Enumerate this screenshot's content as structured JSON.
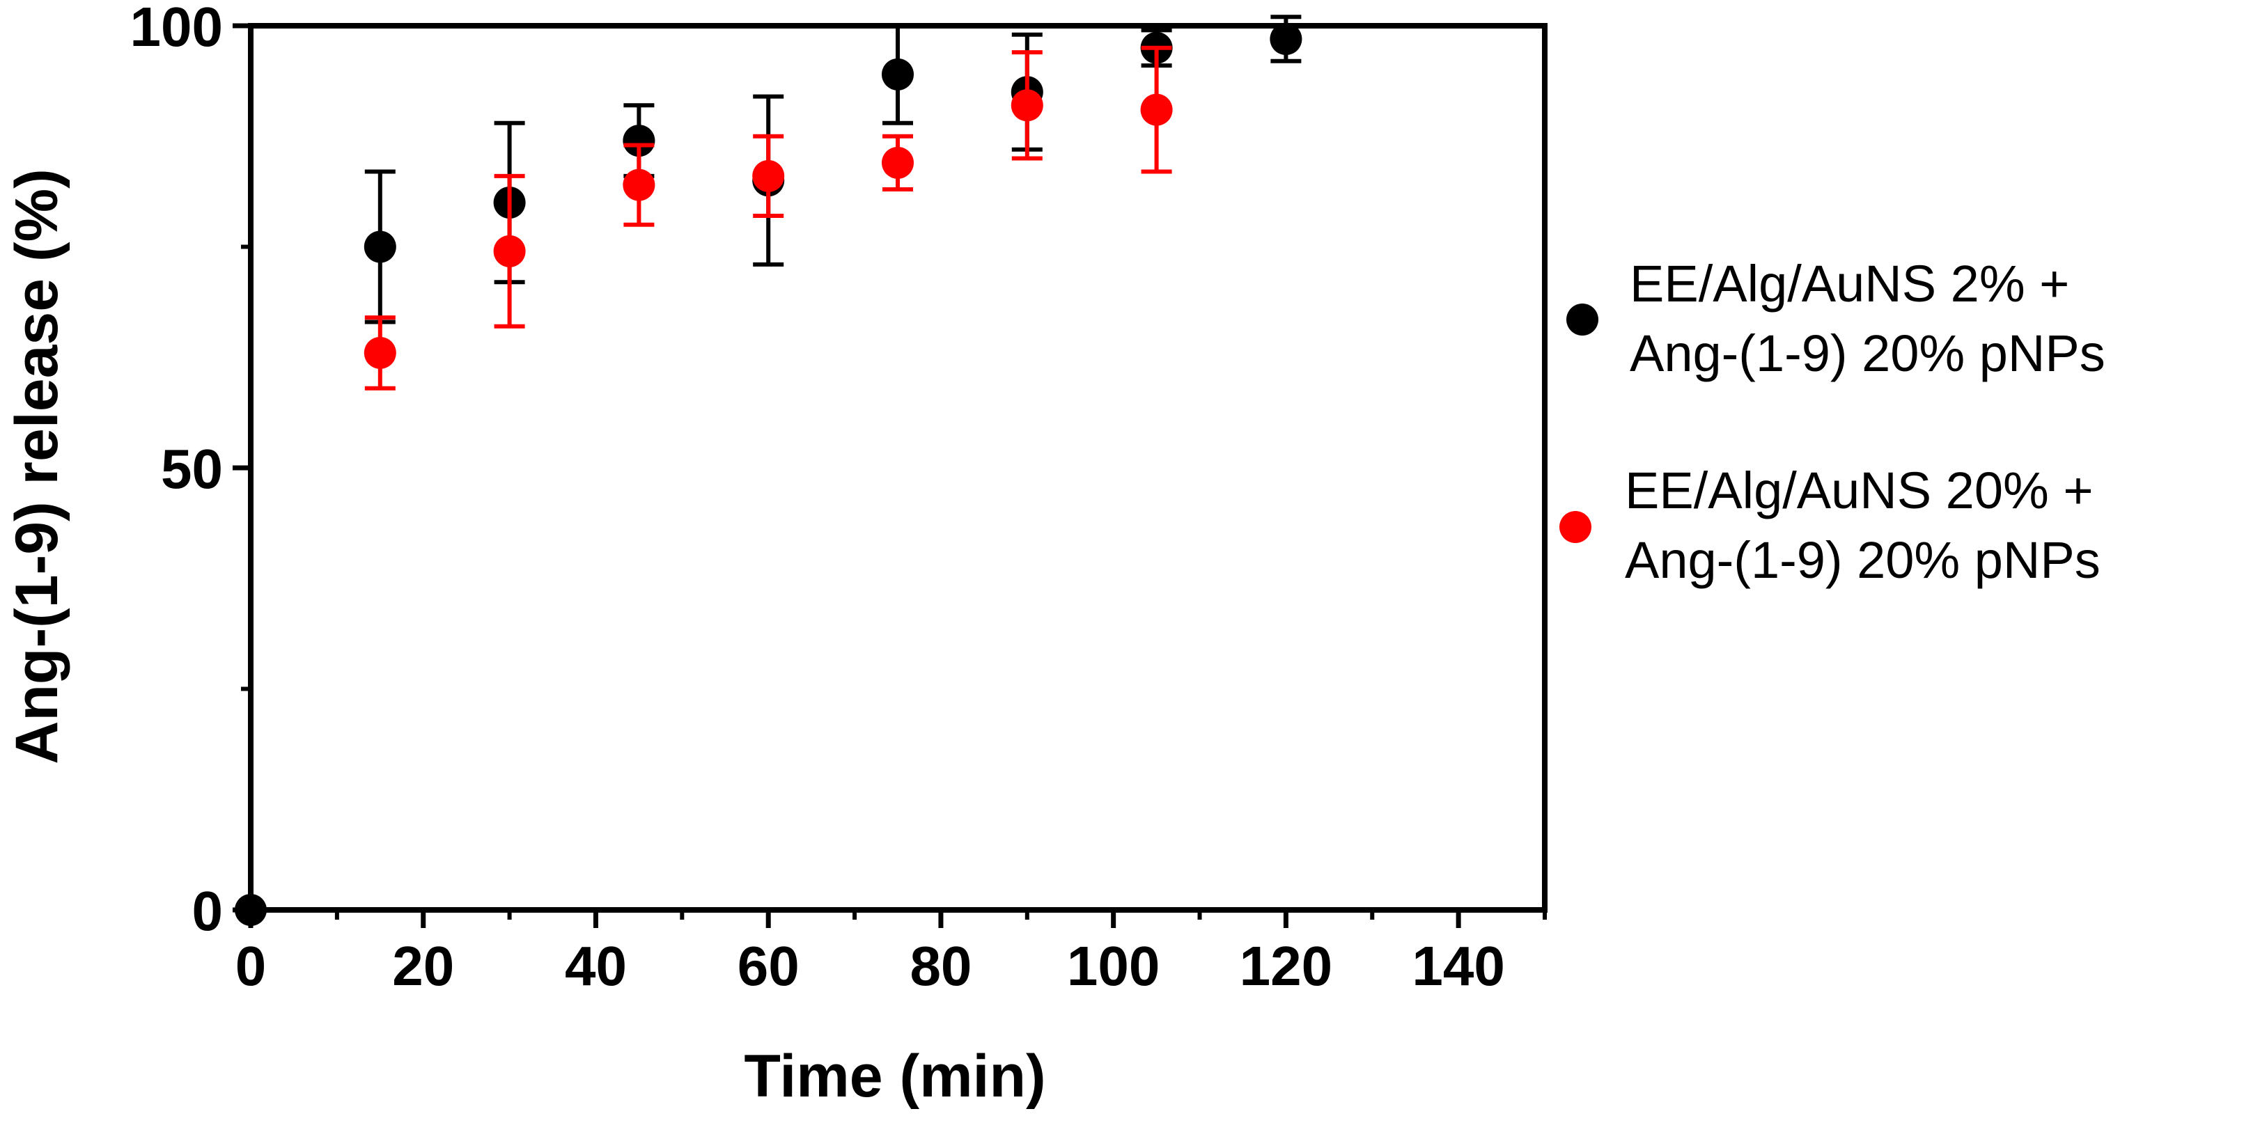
{
  "chart_data": {
    "type": "scatter",
    "xlabel": "Time (min)",
    "ylabel": "Ang-(1-9) release (%)",
    "xlim": [
      0,
      150
    ],
    "ylim": [
      0,
      100
    ],
    "x_ticks": [
      0,
      20,
      40,
      60,
      80,
      100,
      120,
      140
    ],
    "x_tick_labels": [
      "0",
      "20",
      "40",
      "60",
      "80",
      "100",
      "120",
      "140"
    ],
    "x_minor_ticks": [
      10,
      30,
      50,
      70,
      90,
      110,
      130,
      150
    ],
    "y_ticks": [
      0,
      50,
      100
    ],
    "y_tick_labels": [
      "0",
      "50",
      "100"
    ],
    "y_minor_ticks": [
      25,
      75
    ],
    "grid": false,
    "legend_position": "right",
    "series": [
      {
        "name_lines": [
          "EE/Alg/AuNS 2% +",
          "Ang-(1-9) 20% pNPs"
        ],
        "color": "#000000",
        "x": [
          0,
          15,
          30,
          45,
          60,
          75,
          90,
          105,
          120
        ],
        "y": [
          0,
          75,
          80,
          87,
          82.5,
          94.5,
          92.5,
          97.5,
          98.5
        ],
        "error": [
          0,
          8.5,
          9,
          4,
          9.5,
          5.5,
          6.5,
          2,
          2.5
        ]
      },
      {
        "name_lines": [
          "EE/Alg/AuNS 20% +",
          "Ang-(1-9) 20% pNPs"
        ],
        "color": "#ff0000",
        "x": [
          15,
          30,
          45,
          60,
          75,
          90,
          105
        ],
        "y": [
          63,
          74.5,
          82,
          83,
          84.5,
          91,
          90.5
        ],
        "error": [
          4,
          8.5,
          4.5,
          4.5,
          3,
          6,
          7
        ]
      }
    ]
  }
}
